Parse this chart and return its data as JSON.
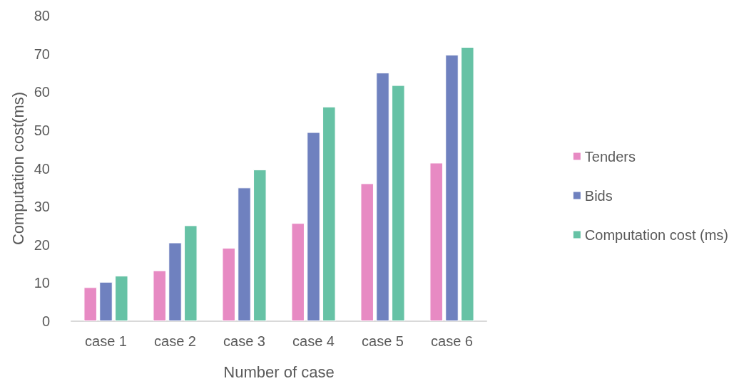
{
  "chart_data": {
    "type": "bar",
    "xlabel": "Number of case",
    "ylabel": "Computation cost(ms)",
    "categories": [
      "case 1",
      "case 2",
      "case 3",
      "case 4",
      "case 5",
      "case 6"
    ],
    "series": [
      {
        "name": "Tenders",
        "color": "#e78ac3",
        "values": [
          8.9,
          13.3,
          19.2,
          25.7,
          36.1,
          41.5
        ]
      },
      {
        "name": "Bids",
        "color": "#6f81bf",
        "values": [
          10.3,
          20.6,
          35.0,
          49.5,
          65.1,
          69.8
        ]
      },
      {
        "name": "Computation cost (ms)",
        "color": "#66c2a5",
        "values": [
          11.9,
          25.1,
          39.7,
          56.2,
          61.8,
          71.8
        ]
      }
    ],
    "ylim": [
      0,
      80
    ],
    "yticks": [
      0,
      10,
      20,
      30,
      40,
      50,
      60,
      70,
      80
    ],
    "grid": false,
    "legend": "right"
  }
}
